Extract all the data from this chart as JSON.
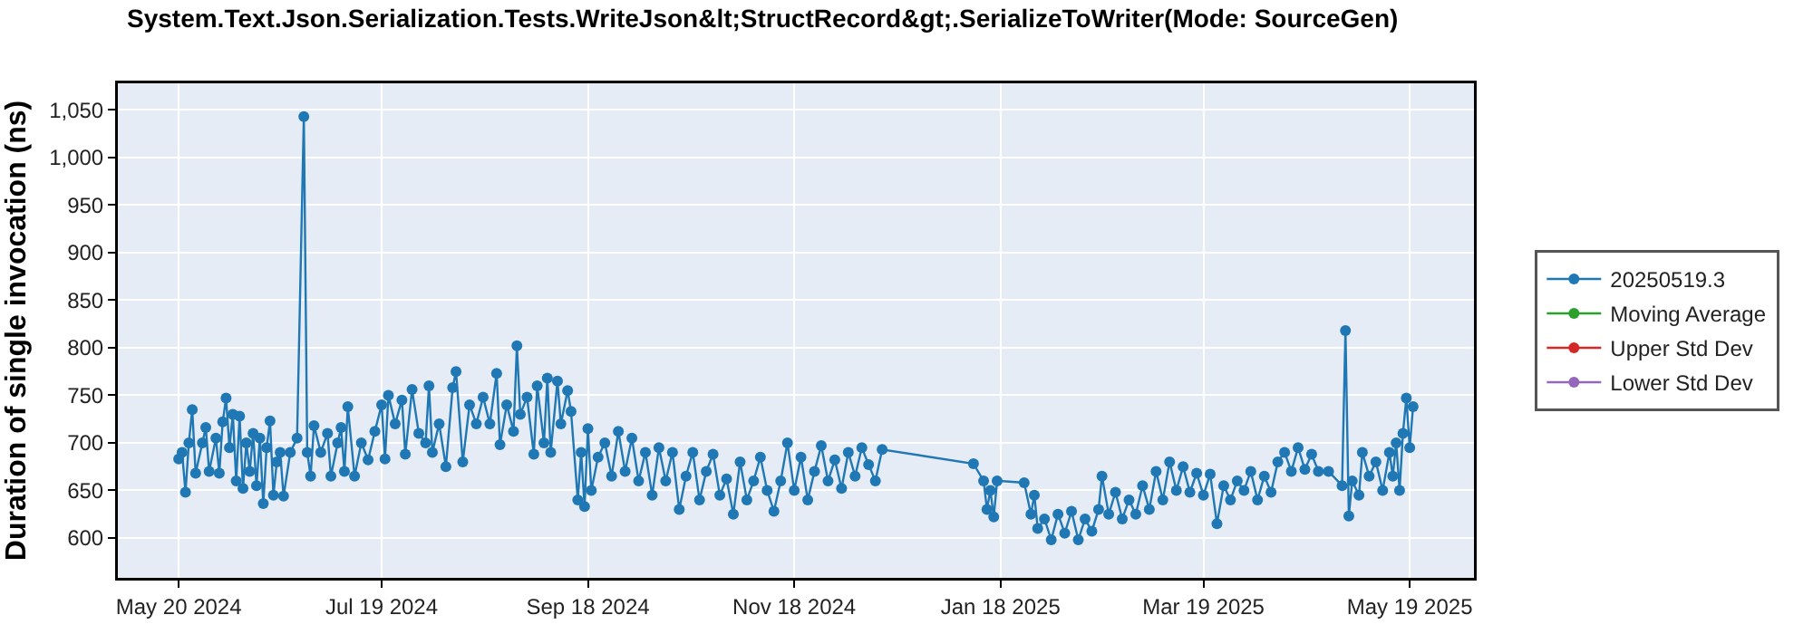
{
  "chart_data": {
    "type": "line",
    "title": "System.Text.Json.Serialization.Tests.WriteJson&lt;StructRecord&gt;.SerializeToWriter(Mode: SourceGen)",
    "ylabel": "Duration of single invocation (ns)",
    "x": [
      "2024-05-20",
      "2024-05-21",
      "2024-05-22",
      "2024-05-23",
      "2024-05-24",
      "2024-05-25",
      "2024-05-27",
      "2024-05-28",
      "2024-05-29",
      "2024-05-31",
      "2024-06-01",
      "2024-06-02",
      "2024-06-03",
      "2024-06-04",
      "2024-06-05",
      "2024-06-06",
      "2024-06-07",
      "2024-06-08",
      "2024-06-09",
      "2024-06-10",
      "2024-06-11",
      "2024-06-12",
      "2024-06-13",
      "2024-06-14",
      "2024-06-15",
      "2024-06-16",
      "2024-06-17",
      "2024-06-18",
      "2024-06-19",
      "2024-06-20",
      "2024-06-22",
      "2024-06-24",
      "2024-06-26",
      "2024-06-27",
      "2024-06-28",
      "2024-06-29",
      "2024-07-01",
      "2024-07-03",
      "2024-07-04",
      "2024-07-06",
      "2024-07-07",
      "2024-07-08",
      "2024-07-09",
      "2024-07-11",
      "2024-07-13",
      "2024-07-15",
      "2024-07-17",
      "2024-07-19",
      "2024-07-20",
      "2024-07-21",
      "2024-07-23",
      "2024-07-25",
      "2024-07-26",
      "2024-07-28",
      "2024-07-30",
      "2024-08-01",
      "2024-08-02",
      "2024-08-03",
      "2024-08-05",
      "2024-08-07",
      "2024-08-09",
      "2024-08-10",
      "2024-08-12",
      "2024-08-14",
      "2024-08-16",
      "2024-08-18",
      "2024-08-20",
      "2024-08-22",
      "2024-08-23",
      "2024-08-25",
      "2024-08-27",
      "2024-08-28",
      "2024-08-29",
      "2024-08-31",
      "2024-09-02",
      "2024-09-03",
      "2024-09-05",
      "2024-09-06",
      "2024-09-07",
      "2024-09-09",
      "2024-09-10",
      "2024-09-12",
      "2024-09-13",
      "2024-09-15",
      "2024-09-16",
      "2024-09-17",
      "2024-09-18",
      "2024-09-19",
      "2024-09-21",
      "2024-09-23",
      "2024-09-25",
      "2024-09-27",
      "2024-09-29",
      "2024-10-01",
      "2024-10-03",
      "2024-10-05",
      "2024-10-07",
      "2024-10-09",
      "2024-10-11",
      "2024-10-13",
      "2024-10-15",
      "2024-10-17",
      "2024-10-19",
      "2024-10-21",
      "2024-10-23",
      "2024-10-25",
      "2024-10-27",
      "2024-10-29",
      "2024-10-31",
      "2024-11-02",
      "2024-11-04",
      "2024-11-06",
      "2024-11-08",
      "2024-11-10",
      "2024-11-12",
      "2024-11-14",
      "2024-11-16",
      "2024-11-18",
      "2024-11-20",
      "2024-11-22",
      "2024-11-24",
      "2024-11-26",
      "2024-11-28",
      "2024-11-30",
      "2024-12-02",
      "2024-12-04",
      "2024-12-06",
      "2024-12-08",
      "2024-12-10",
      "2024-12-12",
      "2024-12-14",
      "2025-01-10",
      "2025-01-13",
      "2025-01-14",
      "2025-01-15",
      "2025-01-16",
      "2025-01-17",
      "2025-01-25",
      "2025-01-27",
      "2025-01-28",
      "2025-01-29",
      "2025-01-31",
      "2025-02-02",
      "2025-02-04",
      "2025-02-06",
      "2025-02-08",
      "2025-02-10",
      "2025-02-12",
      "2025-02-14",
      "2025-02-16",
      "2025-02-17",
      "2025-02-19",
      "2025-02-21",
      "2025-02-23",
      "2025-02-25",
      "2025-02-27",
      "2025-03-01",
      "2025-03-03",
      "2025-03-05",
      "2025-03-07",
      "2025-03-09",
      "2025-03-11",
      "2025-03-13",
      "2025-03-15",
      "2025-03-17",
      "2025-03-19",
      "2025-03-21",
      "2025-03-23",
      "2025-03-25",
      "2025-03-27",
      "2025-03-29",
      "2025-03-31",
      "2025-04-02",
      "2025-04-04",
      "2025-04-06",
      "2025-04-08",
      "2025-04-10",
      "2025-04-12",
      "2025-04-14",
      "2025-04-16",
      "2025-04-18",
      "2025-04-20",
      "2025-04-22",
      "2025-04-25",
      "2025-04-29",
      "2025-04-30",
      "2025-05-01",
      "2025-05-02",
      "2025-05-04",
      "2025-05-05",
      "2025-05-07",
      "2025-05-09",
      "2025-05-11",
      "2025-05-13",
      "2025-05-14",
      "2025-05-15",
      "2025-05-16",
      "2025-05-17",
      "2025-05-18",
      "2025-05-19",
      "2025-05-20"
    ],
    "series": [
      {
        "name": "20250519.3",
        "color": "#1f77b4",
        "values": [
          683,
          690,
          648,
          700,
          735,
          668,
          700,
          716,
          670,
          705,
          668,
          722,
          747,
          695,
          730,
          660,
          728,
          652,
          700,
          670,
          710,
          655,
          705,
          636,
          695,
          723,
          645,
          680,
          690,
          644,
          690,
          705,
          1043,
          690,
          665,
          718,
          690,
          710,
          665,
          700,
          716,
          670,
          738,
          665,
          700,
          682,
          712,
          740,
          683,
          750,
          720,
          745,
          688,
          756,
          710,
          700,
          760,
          690,
          720,
          675,
          758,
          775,
          680,
          740,
          720,
          748,
          720,
          773,
          698,
          740,
          712,
          802,
          730,
          748,
          688,
          760,
          700,
          768,
          690,
          765,
          720,
          755,
          733,
          640,
          690,
          633,
          715,
          650,
          685,
          700,
          665,
          712,
          670,
          705,
          660,
          690,
          645,
          695,
          660,
          690,
          630,
          665,
          690,
          640,
          670,
          688,
          645,
          662,
          625,
          680,
          640,
          660,
          685,
          650,
          628,
          660,
          700,
          650,
          685,
          640,
          670,
          697,
          660,
          682,
          652,
          690,
          665,
          695,
          677,
          660,
          693,
          678,
          660,
          630,
          650,
          622,
          660,
          658,
          625,
          645,
          610,
          620,
          598,
          625,
          605,
          628,
          598,
          620,
          607,
          630,
          665,
          625,
          648,
          620,
          640,
          625,
          655,
          630,
          670,
          640,
          680,
          650,
          675,
          648,
          668,
          645,
          667,
          615,
          655,
          640,
          660,
          650,
          670,
          640,
          665,
          648,
          680,
          690,
          670,
          695,
          672,
          688,
          670,
          670,
          655,
          818,
          623,
          660,
          645,
          690,
          665,
          680,
          650,
          690,
          665,
          700,
          650,
          710,
          747,
          695,
          738
        ]
      },
      {
        "name": "Moving Average",
        "color": "#2ca02c",
        "values": [
          null,
          null,
          null,
          null,
          null,
          null,
          null,
          null,
          null,
          null,
          null,
          null,
          null,
          null,
          null,
          null,
          null,
          null,
          null,
          null,
          null,
          null,
          null,
          null,
          null,
          null,
          null,
          null,
          null,
          null,
          null,
          null,
          null,
          null,
          null,
          null,
          null,
          null,
          null,
          null,
          null,
          null,
          null,
          null,
          null,
          null,
          null,
          null,
          null,
          null,
          null,
          null,
          null,
          null,
          null,
          null,
          null,
          null,
          null,
          null,
          null,
          null,
          null,
          null,
          null,
          null,
          null,
          null,
          null,
          null,
          null,
          null,
          null,
          null,
          null,
          null,
          null,
          null,
          null,
          null,
          null,
          null,
          null,
          null,
          null,
          null,
          null,
          null,
          null,
          null,
          null,
          null,
          null,
          null,
          null,
          null,
          null,
          null,
          null,
          null,
          null,
          null,
          null,
          null,
          null,
          null,
          null,
          null,
          null,
          null,
          null,
          null,
          null,
          null,
          null,
          null,
          null,
          null,
          null,
          null,
          null,
          null,
          null,
          null,
          null,
          null,
          null,
          null,
          null,
          null,
          null,
          null,
          null,
          null,
          null,
          null,
          null,
          null,
          null,
          null,
          null,
          null,
          null,
          null,
          null,
          null,
          null,
          null,
          null,
          null,
          null,
          null,
          null,
          null,
          null,
          null,
          null,
          null,
          null,
          null,
          null,
          null,
          null,
          null,
          null,
          null,
          null,
          null,
          null,
          null,
          null,
          null,
          null,
          null,
          null,
          null,
          null,
          null,
          null,
          null,
          null,
          null,
          null,
          null,
          null,
          null,
          null,
          null,
          null,
          null,
          null,
          null,
          null,
          null,
          null,
          null,
          null,
          null,
          null,
          null,
          null
        ]
      },
      {
        "name": "Upper Std Dev",
        "color": "#d62728",
        "values": [
          null,
          null,
          null,
          null,
          null,
          null,
          null,
          null,
          null,
          null,
          null,
          null,
          null,
          null,
          null,
          null,
          null,
          null,
          null,
          null,
          null,
          null,
          null,
          null,
          null,
          null,
          null,
          null,
          null,
          null,
          null,
          null,
          null,
          null,
          null,
          null,
          null,
          null,
          null,
          null,
          null,
          null,
          null,
          null,
          null,
          null,
          null,
          null,
          null,
          null,
          null,
          null,
          null,
          null,
          null,
          null,
          null,
          null,
          null,
          null,
          null,
          null,
          null,
          null,
          null,
          null,
          null,
          null,
          null,
          null,
          null,
          null,
          null,
          null,
          null,
          null,
          null,
          null,
          null,
          null,
          null,
          null,
          null,
          null,
          null,
          null,
          null,
          null,
          null,
          null,
          null,
          null,
          null,
          null,
          null,
          null,
          null,
          null,
          null,
          null,
          null,
          null,
          null,
          null,
          null,
          null,
          null,
          null,
          null,
          null,
          null,
          null,
          null,
          null,
          null,
          null,
          null,
          null,
          null,
          null,
          null,
          null,
          null,
          null,
          null,
          null,
          null,
          null,
          null,
          null,
          null,
          null,
          null,
          null,
          null,
          null,
          null,
          null,
          null,
          null,
          null,
          null,
          null,
          null,
          null,
          null,
          null,
          null,
          null,
          null,
          null,
          null,
          null,
          null,
          null,
          null,
          null,
          null,
          null,
          null,
          null,
          null,
          null,
          null,
          null,
          null,
          null,
          null,
          null,
          null,
          null,
          null,
          null,
          null,
          null,
          null,
          null,
          null,
          null,
          null,
          null,
          null,
          null,
          null,
          null,
          null,
          null,
          null,
          null,
          null,
          null,
          null,
          null,
          null,
          null,
          null,
          null,
          null,
          null,
          null,
          null
        ]
      },
      {
        "name": "Lower Std Dev",
        "color": "#9467bd",
        "values": [
          null,
          null,
          null,
          null,
          null,
          null,
          null,
          null,
          null,
          null,
          null,
          null,
          null,
          null,
          null,
          null,
          null,
          null,
          null,
          null,
          null,
          null,
          null,
          null,
          null,
          null,
          null,
          null,
          null,
          null,
          null,
          null,
          null,
          null,
          null,
          null,
          null,
          null,
          null,
          null,
          null,
          null,
          null,
          null,
          null,
          null,
          null,
          null,
          null,
          null,
          null,
          null,
          null,
          null,
          null,
          null,
          null,
          null,
          null,
          null,
          null,
          null,
          null,
          null,
          null,
          null,
          null,
          null,
          null,
          null,
          null,
          null,
          null,
          null,
          null,
          null,
          null,
          null,
          null,
          null,
          null,
          null,
          null,
          null,
          null,
          null,
          null,
          null,
          null,
          null,
          null,
          null,
          null,
          null,
          null,
          null,
          null,
          null,
          null,
          null,
          null,
          null,
          null,
          null,
          null,
          null,
          null,
          null,
          null,
          null,
          null,
          null,
          null,
          null,
          null,
          null,
          null,
          null,
          null,
          null,
          null,
          null,
          null,
          null,
          null,
          null,
          null,
          null,
          null,
          null,
          null,
          null,
          null,
          null,
          null,
          null,
          null,
          null,
          null,
          null,
          null,
          null,
          null,
          null,
          null,
          null,
          null,
          null,
          null,
          null,
          null,
          null,
          null,
          null,
          null,
          null,
          null,
          null,
          null,
          null,
          null,
          null,
          null,
          null,
          null,
          null,
          null,
          null,
          null,
          null,
          null,
          null,
          null,
          null,
          null,
          null,
          null,
          null,
          null,
          null,
          null,
          null,
          null,
          null,
          null,
          null,
          null,
          null,
          null,
          null,
          null,
          null,
          null,
          null,
          null,
          null,
          null,
          null,
          null,
          null,
          null
        ]
      }
    ],
    "xlim": [
      "2024-05-02",
      "2025-06-07"
    ],
    "xticks": [
      {
        "value": "2024-05-20",
        "label": "May 20 2024"
      },
      {
        "value": "2024-07-19",
        "label": "Jul 19 2024"
      },
      {
        "value": "2024-09-18",
        "label": "Sep 18 2024"
      },
      {
        "value": "2024-11-18",
        "label": "Nov 18 2024"
      },
      {
        "value": "2025-01-18",
        "label": "Jan 18 2025"
      },
      {
        "value": "2025-03-19",
        "label": "Mar 19 2025"
      },
      {
        "value": "2025-05-19",
        "label": "May 19 2025"
      }
    ],
    "ylim": [
      558,
      1078
    ],
    "yticks": [
      600,
      650,
      700,
      750,
      800,
      850,
      900,
      950,
      {
        "value": 1000,
        "label": "1,000"
      },
      {
        "value": 1050,
        "label": "1,050"
      }
    ],
    "grid": true,
    "legend": "right",
    "marker": "circle",
    "line_style": "solid"
  }
}
